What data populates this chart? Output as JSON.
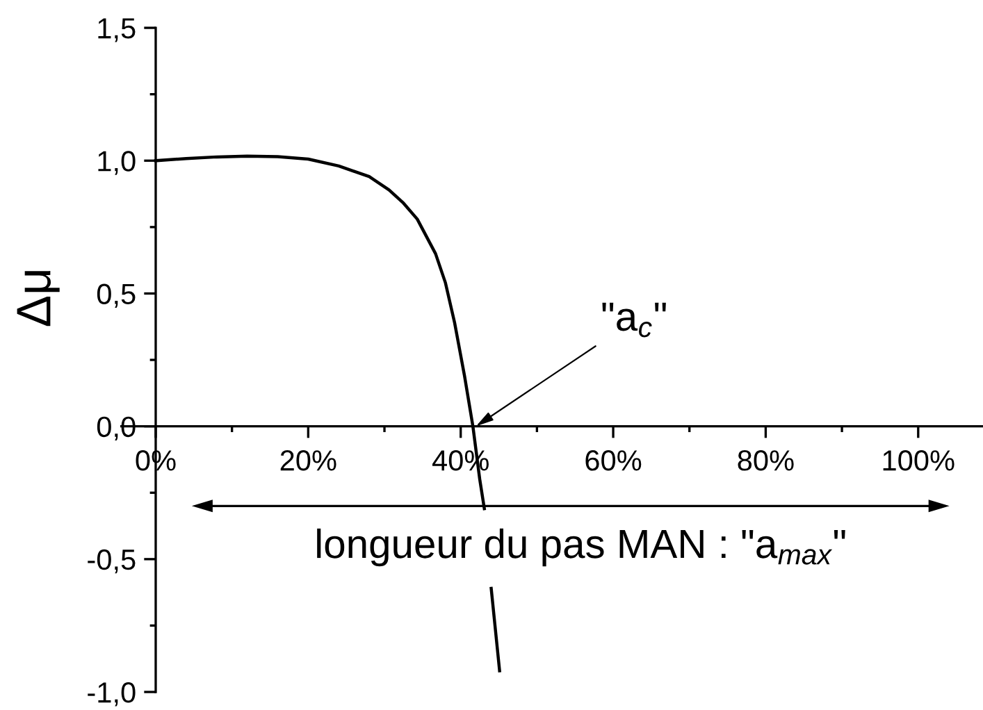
{
  "chart_data": {
    "type": "line",
    "ylabel": "Δμ",
    "xlim": [
      -4.5,
      108.5
    ],
    "ylim": [
      -1.0,
      1.5
    ],
    "xticks": [
      {
        "value": 0,
        "label": "0%"
      },
      {
        "value": 10,
        "label": null
      },
      {
        "value": 20,
        "label": "20%"
      },
      {
        "value": 30,
        "label": null
      },
      {
        "value": 40,
        "label": "40%"
      },
      {
        "value": 50,
        "label": null
      },
      {
        "value": 60,
        "label": "60%"
      },
      {
        "value": 70,
        "label": null
      },
      {
        "value": 80,
        "label": "80%"
      },
      {
        "value": 90,
        "label": null
      },
      {
        "value": 100,
        "label": "100%"
      }
    ],
    "yticks": [
      {
        "value": -1.0,
        "label": "-1,0"
      },
      {
        "value": -0.75,
        "label": null
      },
      {
        "value": -0.5,
        "label": "-0,5"
      },
      {
        "value": -0.25,
        "label": null
      },
      {
        "value": 0.0,
        "label": "0,0"
      },
      {
        "value": 0.25,
        "label": null
      },
      {
        "value": 0.5,
        "label": "0,5"
      },
      {
        "value": 0.75,
        "label": null
      },
      {
        "value": 1.0,
        "label": "1,0"
      },
      {
        "value": 1.25,
        "label": null
      },
      {
        "value": 1.5,
        "label": "1,5"
      }
    ],
    "series": [
      {
        "color": "#000000",
        "x": [
          0,
          4,
          8,
          12,
          16,
          20,
          24,
          28,
          30.6,
          32.5,
          34.3,
          36.7,
          38,
          39.2,
          40.5,
          41.6,
          42.5,
          43.1,
          43.5,
          44.0,
          45.1
        ],
        "values": [
          1.0,
          1.008,
          1.014,
          1.017,
          1.015,
          1.006,
          0.98,
          0.94,
          0.89,
          0.84,
          0.78,
          0.65,
          0.54,
          0.39,
          0.19,
          0.0,
          -0.2,
          -0.31,
          null,
          -0.61,
          -0.92
        ]
      }
    ],
    "line_style": "solid",
    "annotations": [
      {
        "text": "\"a$_{c}$\"",
        "x": 42,
        "y": 0
      },
      "longueur du pas MAN : \"a$_{max}$\""
    ]
  }
}
